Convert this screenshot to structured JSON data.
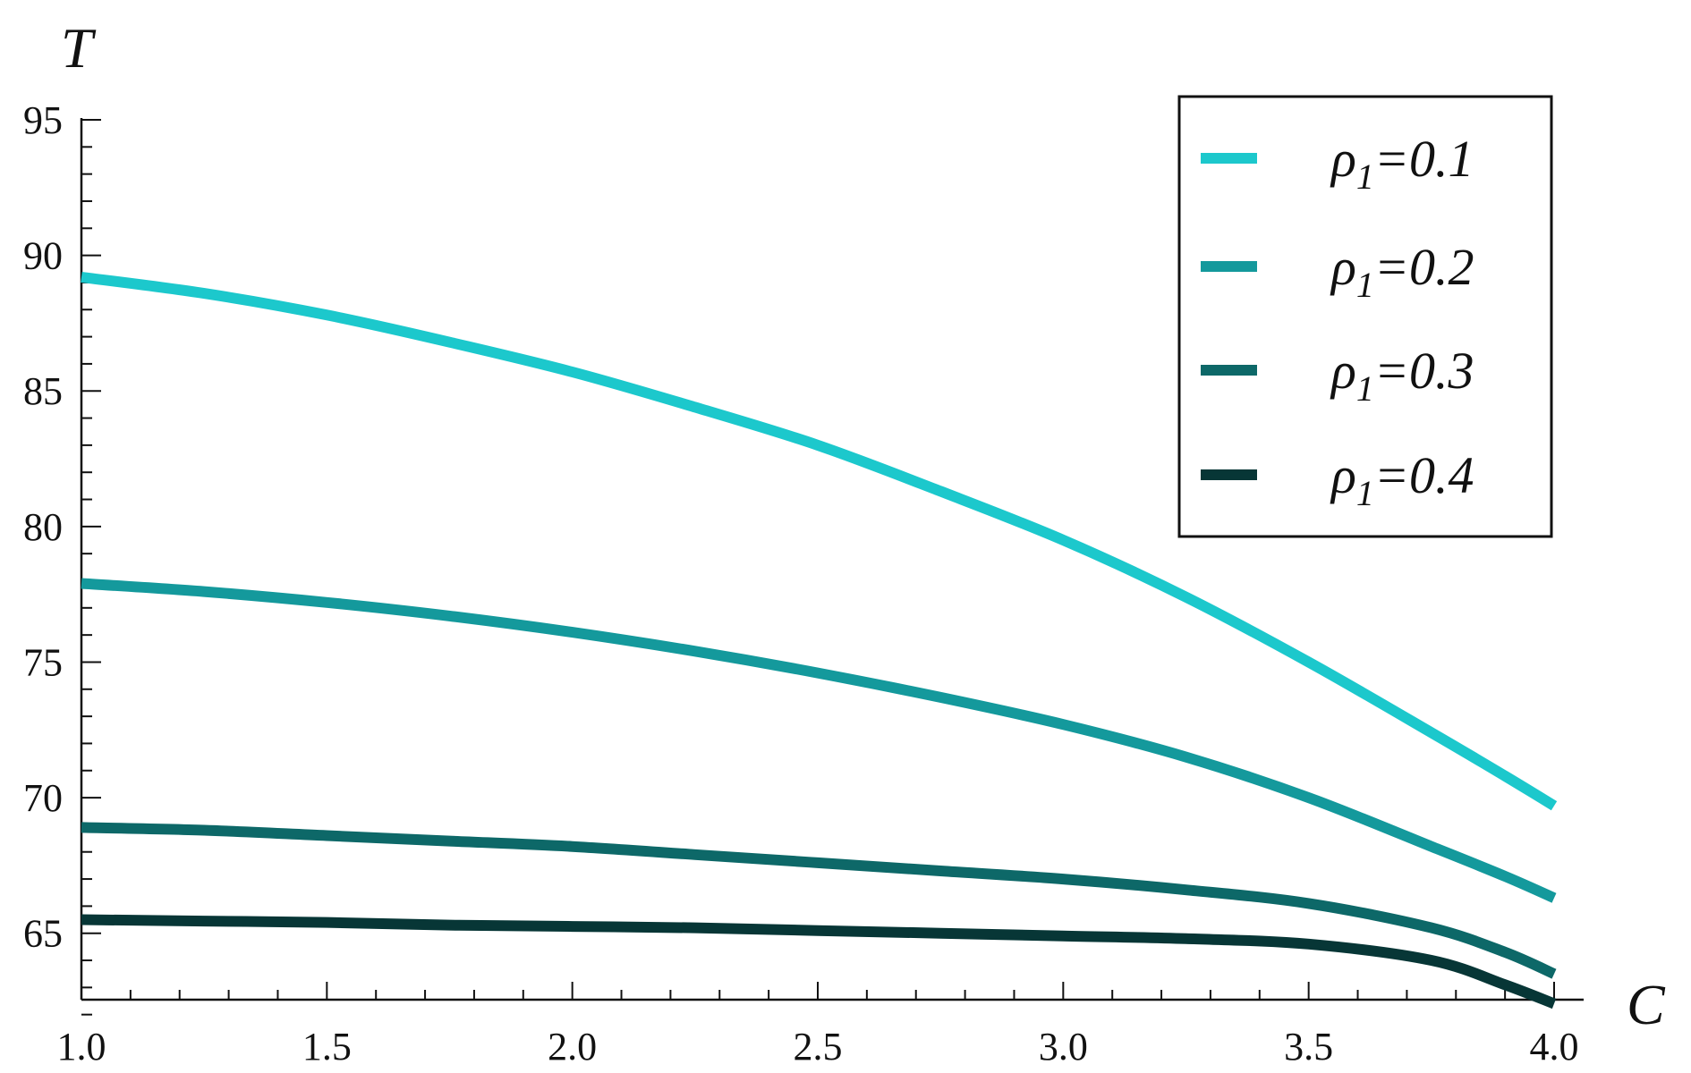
{
  "chart_data": {
    "type": "line",
    "title": "",
    "xlabel": "C",
    "ylabel": "T",
    "xlim": [
      1.0,
      4.05
    ],
    "ylim": [
      61.0,
      96.0
    ],
    "x_ticks": [
      1.0,
      1.5,
      2.0,
      2.5,
      3.0,
      3.5,
      4.0
    ],
    "x_tick_labels": [
      "1.0",
      "1.5",
      "2.0",
      "2.5",
      "3.0",
      "3.5",
      "4.0"
    ],
    "y_ticks": [
      65,
      70,
      75,
      80,
      85,
      90,
      95
    ],
    "y_tick_labels": [
      "65",
      "70",
      "75",
      "80",
      "85",
      "90",
      "95"
    ],
    "grid": false,
    "legend_position": "top-right",
    "x": [
      1.0,
      1.25,
      1.5,
      1.75,
      2.0,
      2.25,
      2.5,
      2.75,
      3.0,
      3.25,
      3.5,
      3.75,
      3.9,
      4.0
    ],
    "series": [
      {
        "name_prefix": "ρ",
        "name_sub": "1",
        "name_suffix": "=0.1",
        "color": "#1cc8cc",
        "values": [
          89.2,
          88.6,
          87.8,
          86.8,
          85.7,
          84.4,
          83.0,
          81.3,
          79.5,
          77.4,
          75.0,
          72.4,
          70.8,
          69.7
        ]
      },
      {
        "name_prefix": "ρ",
        "name_sub": "1",
        "name_suffix": "=0.2",
        "color": "#14999c",
        "values": [
          77.9,
          77.6,
          77.2,
          76.7,
          76.1,
          75.4,
          74.6,
          73.7,
          72.7,
          71.5,
          70.0,
          68.2,
          67.1,
          66.3
        ]
      },
      {
        "name_prefix": "ρ",
        "name_sub": "1",
        "name_suffix": "=0.3",
        "color": "#0d6868",
        "values": [
          68.9,
          68.8,
          68.6,
          68.4,
          68.2,
          67.9,
          67.6,
          67.3,
          67.0,
          66.6,
          66.1,
          65.2,
          64.3,
          63.5
        ]
      },
      {
        "name_prefix": "ρ",
        "name_sub": "1",
        "name_suffix": "=0.4",
        "color": "#073636",
        "values": [
          65.5,
          65.45,
          65.4,
          65.3,
          65.25,
          65.2,
          65.1,
          65.0,
          64.9,
          64.8,
          64.6,
          64.0,
          63.1,
          62.4
        ]
      }
    ]
  }
}
